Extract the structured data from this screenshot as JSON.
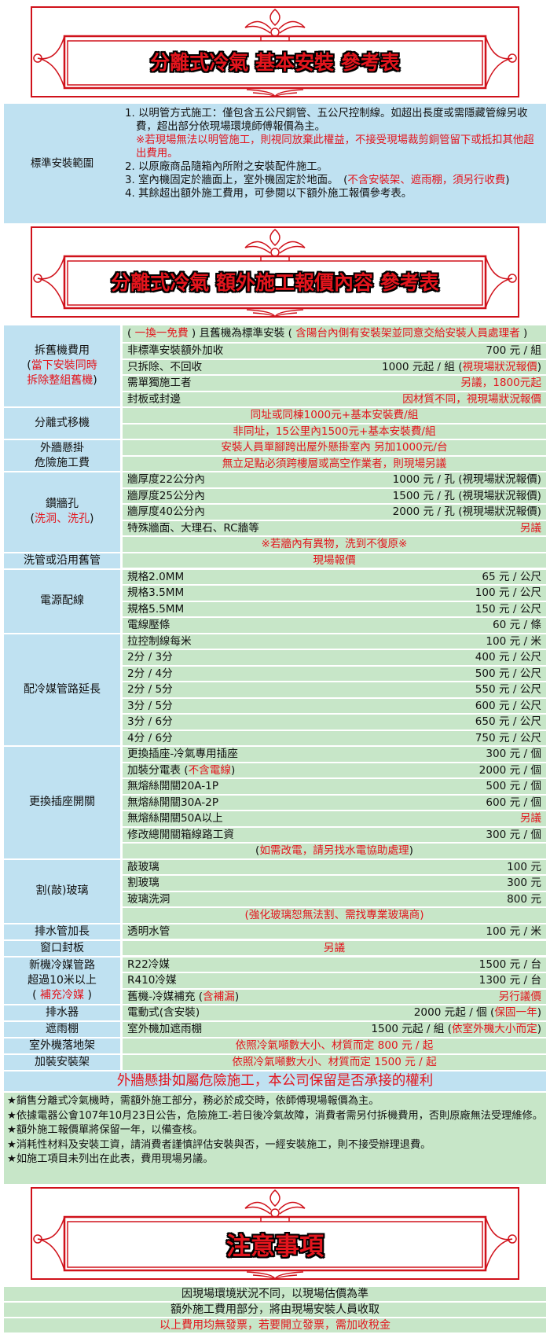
{
  "colors": {
    "accent_red": "#e3151d",
    "label_blue": "#bfe1f1",
    "cell_green": "#c7e6c8"
  },
  "title1": "分離式冷氣 基本安裝 參考表",
  "standard": {
    "label": "標準安裝範圍",
    "items": [
      {
        "text": "1. 以明管方式施工：僅包含五公尺銅管、五公尺控制線。如超出長度或需隱藏管線另收費，超出部分依現場環境師傅報價為主。",
        "note": "※若現場無法以明管施工，則視同放棄此權益，不接受現場裁剪銅管留下或抵扣其他超出費用。"
      },
      {
        "text": "2. 以原廠商品隨箱內所附之安裝配件施工。"
      },
      {
        "segs": [
          [
            "3. 室內機固定於牆面上，室外機固定於地面。　(",
            ""
          ],
          [
            "不含安裝架、遮雨棚，須另行收費",
            "r"
          ],
          [
            ")",
            ""
          ]
        ]
      },
      {
        "text": "4. 其餘超出額外施工費用，可參閱以下額外施工報價參考表。"
      }
    ]
  },
  "title2": "分離式冷氣 額外施工報價內容 參考表",
  "table": [
    {
      "label": [
        [
          [
            "拆舊機費用",
            ""
          ]
        ],
        [
          [
            "(",
            ""
          ],
          [
            "當下安裝同時",
            "r"
          ]
        ],
        [
          [
            "拆除整組舊機",
            "r"
          ],
          [
            ")",
            ""
          ]
        ]
      ],
      "rows": [
        {
          "tall": [
            [
              "( ",
              ""
            ],
            [
              "一換一免費",
              "r"
            ],
            [
              " ) 且舊機為標準安裝 ( ",
              ""
            ],
            [
              "含陽台內側有安裝架並同意交給安裝人員處理者",
              "r"
            ],
            [
              " )",
              ""
            ]
          ]
        },
        {
          "l": [
            [
              "非標準安裝額外加收",
              ""
            ]
          ],
          "v": [
            [
              "700 元 / 組",
              ""
            ]
          ]
        },
        {
          "l": [
            [
              "只拆除、不回收",
              ""
            ]
          ],
          "v": [
            [
              "1000 元起 / 組 (",
              ""
            ],
            [
              "視現場狀況報價",
              "r"
            ],
            [
              ")",
              ""
            ]
          ]
        },
        {
          "l": [
            [
              "需單獨施工者",
              ""
            ]
          ],
          "v": [
            [
              "另議，1800元起",
              "r"
            ]
          ]
        },
        {
          "l": [
            [
              "封板或封邊",
              ""
            ]
          ],
          "v": [
            [
              "因材質不同，視現場狀況報價",
              "r"
            ]
          ]
        }
      ]
    },
    {
      "label": [
        [
          [
            "分離式移機",
            ""
          ]
        ]
      ],
      "rows": [
        {
          "c": [
            [
              "同址或同棟1000元+基本安裝費/組",
              "r"
            ]
          ]
        },
        {
          "c": [
            [
              "非同址，15公里內1500元+基本安裝費/組",
              "r"
            ]
          ]
        }
      ]
    },
    {
      "label": [
        [
          [
            "外牆懸掛",
            ""
          ]
        ],
        [
          [
            "危險施工費",
            ""
          ]
        ]
      ],
      "rows": [
        {
          "c": [
            [
              "安裝人員單腳跨出屋外懸掛室內 另加1000元/台",
              "r"
            ]
          ]
        },
        {
          "c": [
            [
              "無立足點必須跨樓層或高空作業者，則現場另議",
              "r"
            ]
          ]
        }
      ]
    },
    {
      "label": [
        [
          [
            "鑽牆孔",
            ""
          ]
        ],
        [
          [
            "(",
            ""
          ],
          [
            "洗洞、洗孔",
            "r"
          ],
          [
            ")",
            ""
          ]
        ]
      ],
      "rows": [
        {
          "l": [
            [
              "牆厚度22公分內",
              ""
            ]
          ],
          "v": [
            [
              "1000 元 / 孔 (視現場狀況報價)",
              ""
            ]
          ]
        },
        {
          "l": [
            [
              "牆厚度25公分內",
              ""
            ]
          ],
          "v": [
            [
              "1500 元 / 孔 (視現場狀況報價)",
              ""
            ]
          ]
        },
        {
          "l": [
            [
              "牆厚度40公分內",
              ""
            ]
          ],
          "v": [
            [
              "2000 元 / 孔 (視現場狀況報價)",
              ""
            ]
          ]
        },
        {
          "l": [
            [
              "特殊牆面、大理石、RC牆等",
              ""
            ]
          ],
          "v": [
            [
              "另議",
              "r"
            ]
          ]
        },
        {
          "c": [
            [
              "※若牆內有異物，洗到不復原※",
              "r"
            ]
          ]
        }
      ]
    },
    {
      "label": [
        [
          [
            "洗管或沿用舊管",
            ""
          ]
        ]
      ],
      "rows": [
        {
          "c": [
            [
              "現場報價",
              "r"
            ]
          ]
        }
      ]
    },
    {
      "label": [
        [
          [
            "電源配線",
            ""
          ]
        ]
      ],
      "rows": [
        {
          "l": [
            [
              "規格2.0MM",
              ""
            ]
          ],
          "v": [
            [
              "65 元 / 公尺",
              ""
            ]
          ]
        },
        {
          "l": [
            [
              "規格3.5MM",
              ""
            ]
          ],
          "v": [
            [
              "100 元 / 公尺",
              ""
            ]
          ]
        },
        {
          "l": [
            [
              "規格5.5MM",
              ""
            ]
          ],
          "v": [
            [
              "150 元 / 公尺",
              ""
            ]
          ]
        },
        {
          "l": [
            [
              "電線壓條",
              ""
            ]
          ],
          "v": [
            [
              "60 元 / 條",
              ""
            ]
          ]
        }
      ]
    },
    {
      "label": [
        [
          [
            "配冷媒管路延長",
            ""
          ]
        ]
      ],
      "rows": [
        {
          "l": [
            [
              "拉控制線每米",
              ""
            ]
          ],
          "v": [
            [
              "100 元 / 米",
              ""
            ]
          ]
        },
        {
          "l": [
            [
              "2分 / 3分",
              ""
            ]
          ],
          "v": [
            [
              "400 元 / 公尺",
              ""
            ]
          ]
        },
        {
          "l": [
            [
              "2分 / 4分",
              ""
            ]
          ],
          "v": [
            [
              "500 元 / 公尺",
              ""
            ]
          ]
        },
        {
          "l": [
            [
              "2分 / 5分",
              ""
            ]
          ],
          "v": [
            [
              "550 元 / 公尺",
              ""
            ]
          ]
        },
        {
          "l": [
            [
              "3分 / 5分",
              ""
            ]
          ],
          "v": [
            [
              "600 元 / 公尺",
              ""
            ]
          ]
        },
        {
          "l": [
            [
              "3分 / 6分",
              ""
            ]
          ],
          "v": [
            [
              "650 元 / 公尺",
              ""
            ]
          ]
        },
        {
          "l": [
            [
              "4分 / 6分",
              ""
            ]
          ],
          "v": [
            [
              "750 元 / 公尺",
              ""
            ]
          ]
        }
      ]
    },
    {
      "label": [
        [
          [
            "更換插座開關",
            ""
          ]
        ]
      ],
      "rows": [
        {
          "l": [
            [
              "更換插座-冷氣專用插座",
              ""
            ]
          ],
          "v": [
            [
              "300 元 / 個",
              ""
            ]
          ]
        },
        {
          "l": [
            [
              "加裝分電表 (",
              ""
            ],
            [
              "不含電線",
              "r"
            ],
            [
              ")",
              ""
            ]
          ],
          "v": [
            [
              "2000 元 / 個",
              ""
            ]
          ]
        },
        {
          "l": [
            [
              "無熔絲開關20A-1P",
              ""
            ]
          ],
          "v": [
            [
              "500 元 / 個",
              ""
            ]
          ]
        },
        {
          "l": [
            [
              "無熔絲開關30A-2P",
              ""
            ]
          ],
          "v": [
            [
              "600 元 / 個",
              ""
            ]
          ]
        },
        {
          "l": [
            [
              "無熔絲開關50A以上",
              ""
            ]
          ],
          "v": [
            [
              "另議",
              "r"
            ]
          ]
        },
        {
          "l": [
            [
              "修改總開關箱線路工資",
              ""
            ]
          ],
          "v": [
            [
              "300 元 / 個",
              ""
            ]
          ]
        },
        {
          "c": [
            [
              "(",
              ""
            ],
            [
              "如需改電，請另找水電協助處理",
              "r"
            ],
            [
              ")",
              ""
            ]
          ]
        }
      ]
    },
    {
      "label": [
        [
          [
            "割(敲)玻璃",
            ""
          ]
        ]
      ],
      "rows": [
        {
          "l": [
            [
              "敲玻璃",
              ""
            ]
          ],
          "v": [
            [
              "100 元",
              ""
            ]
          ]
        },
        {
          "l": [
            [
              "割玻璃",
              ""
            ]
          ],
          "v": [
            [
              "300 元",
              ""
            ]
          ]
        },
        {
          "l": [
            [
              "玻璃洗洞",
              ""
            ]
          ],
          "v": [
            [
              "800 元",
              ""
            ]
          ]
        },
        {
          "c": [
            [
              "(強化玻璃恕無法割、需找專業玻璃商)",
              "r"
            ]
          ]
        }
      ]
    },
    {
      "label": [
        [
          [
            "排水管加長",
            ""
          ]
        ]
      ],
      "rows": [
        {
          "l": [
            [
              "透明水管",
              ""
            ]
          ],
          "v": [
            [
              "100 元 / 米",
              ""
            ]
          ]
        }
      ]
    },
    {
      "label": [
        [
          [
            "窗口封板",
            ""
          ]
        ]
      ],
      "rows": [
        {
          "c": [
            [
              "另議",
              "r"
            ]
          ]
        }
      ]
    },
    {
      "label": [
        [
          [
            "新機冷媒管路",
            ""
          ]
        ],
        [
          [
            "超過10米以上",
            ""
          ]
        ],
        [
          [
            "( ",
            ""
          ],
          [
            "補充冷媒",
            "r"
          ],
          [
            " )",
            ""
          ]
        ]
      ],
      "rows": [
        {
          "l": [
            [
              "R22冷媒",
              ""
            ]
          ],
          "v": [
            [
              "1500 元 / 台",
              ""
            ]
          ]
        },
        {
          "l": [
            [
              "R410冷媒",
              ""
            ]
          ],
          "v": [
            [
              "1300 元 / 台",
              ""
            ]
          ]
        },
        {
          "l": [
            [
              "舊機-冷媒補充 (",
              ""
            ],
            [
              "含補漏",
              "r"
            ],
            [
              ")",
              ""
            ]
          ],
          "v": [
            [
              "另行議價",
              "r"
            ]
          ]
        }
      ]
    },
    {
      "label": [
        [
          [
            "排水器",
            ""
          ]
        ]
      ],
      "rows": [
        {
          "l": [
            [
              "電動式(含安裝)",
              ""
            ]
          ],
          "v": [
            [
              "2000 元起 / 個  (",
              ""
            ],
            [
              "保固一年",
              "r"
            ],
            [
              ")",
              ""
            ]
          ]
        }
      ]
    },
    {
      "label": [
        [
          [
            "遮雨棚",
            ""
          ]
        ]
      ],
      "rows": [
        {
          "l": [
            [
              "室外機加遮雨棚",
              ""
            ]
          ],
          "v": [
            [
              "1500 元起 / 組 (",
              ""
            ],
            [
              "依室外機大小而定",
              "r"
            ],
            [
              ")",
              ""
            ]
          ]
        }
      ]
    },
    {
      "label": [
        [
          [
            "室外機落地架",
            ""
          ]
        ]
      ],
      "rows": [
        {
          "c": [
            [
              "依照冷氣噸數大小、材質而定 800 元 / 起",
              "r"
            ]
          ]
        }
      ]
    },
    {
      "label": [
        [
          [
            "加裝安裝架",
            ""
          ]
        ]
      ],
      "rows": [
        {
          "c": [
            [
              "依照冷氣噸數大小、材質而定 1500 元 / 起",
              "r"
            ]
          ]
        }
      ]
    }
  ],
  "banner": "外牆懸掛如屬危險施工，本公司保留是否承接的權利",
  "notes": [
    "★銷售分離式冷氣機時，需額外施工部分，務必於成交時，依師傅現場報價為主。",
    "★依據電器公會107年10月23日公告，危險施工-若日後冷氣故障，消費者需另付拆機費用，否則原廠無法受理維修。",
    "★額外施工報價單將保留一年，以備查核。",
    "★消耗性材料及安裝工資，請消費者謹慎評估安裝與否，一經安裝施工，則不接受辦理退費。",
    "★如施工項目未列出在此表，費用現場另議。"
  ],
  "title3": "注意事項",
  "bottom": [
    {
      "text": "因現場環境狀況不同，以現場估價為準",
      "red": false
    },
    {
      "text": "額外施工費用部分，將由現場安裝人員收取",
      "red": false
    },
    {
      "text": "以上費用均無發票，若要開立發票，需加收稅金",
      "red": true
    }
  ]
}
